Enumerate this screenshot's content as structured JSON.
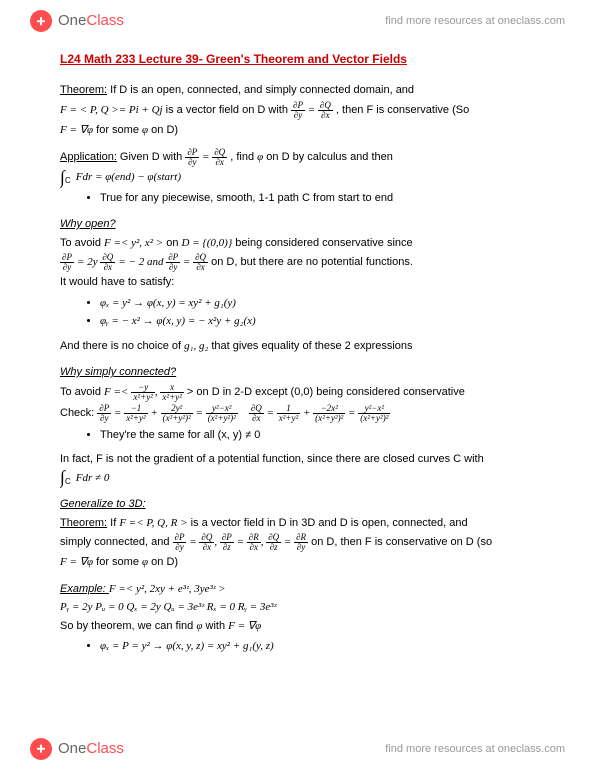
{
  "header": {
    "brand_one": "One",
    "brand_class": "Class",
    "link_text": "find more resources at oneclass.com",
    "link_url": "oneclass.com"
  },
  "footer": {
    "brand_one": "One",
    "brand_class": "Class",
    "link_text": "find more resources at oneclass.com"
  },
  "title": "L24 Math 233 Lecture 39- Green's Theorem and Vector Fields",
  "theorem_intro": {
    "label": "Theorem:",
    "text": " If D is an open, connected, and simply connected domain, and"
  },
  "theorem_line2a": "F =  < P, Q >= Pi + Qj",
  "theorem_line2b": " is a vector field on D with  ",
  "theorem_line2c": " , then F is conservative (So",
  "theorem_line3a": "F = ∇φ",
  "theorem_line3b": " for some ",
  "theorem_line3c": "φ",
  "theorem_line3d": " on D)",
  "application": {
    "label": "Application:",
    "text1": " Given D with  ",
    "text2": " , find  ",
    "phi": "φ",
    "text3": "  on D by calculus and then"
  },
  "integral_line": "Fdr = φ(end) − φ(start)",
  "bullet1": "True for any piecewise, smooth, 1-1 path C from start to end",
  "why_open": {
    "heading": "Why open?",
    "line1a": "To avoid ",
    "line1b": "F =< y², x² >",
    "line1c": "  on  ",
    "line1d": "D = {(0,0)}",
    "line1e": " being considered conservative since",
    "line2a": " = 2y  ",
    "line2b": " = − 2  and  ",
    "line2c": " on D, but there are no potential functions.",
    "line3": "It would have to satisfy:",
    "bullet_a": "φₓ = y² → φ(x, y) = xy² + g₁(y)",
    "bullet_b": "φᵧ = − x² → φ(x, y) = − x²y + g₂(x)",
    "line4a": "And there is no choice of ",
    "line4b": "g₁, g₂",
    "line4c": " that gives equality of these 2 expressions"
  },
  "why_simply": {
    "heading": "Why simply connected?",
    "line1a": "To avoid ",
    "line1b": "F =<",
    "line1c": " > on D in 2-D except (0,0) being considered conservative",
    "check_label": "Check:   ",
    "bullet": "They're the same for all (x, y) ≠ 0",
    "line2": "In fact, F is not the gradient of a potential function, since there are closed curves C with",
    "integral": "Fdr ≠ 0"
  },
  "generalize": {
    "heading": "Generalize to 3D:",
    "label": "Theorem:",
    "line1a": " If ",
    "line1b": "F =< P, Q, R >",
    "line1c": " is a vector field in D in 3D and D is open, connected, and",
    "line2a": "simply connected, and ",
    "line2b": " on D, then F is conservative on D (so",
    "line3a": "F = ∇φ",
    "line3b": " for some ",
    "line3c": "φ",
    "line3d": " on D)"
  },
  "example": {
    "label": "Example: ",
    "line1": "F =< y², 2xy + e³ᶻ, 3ye³ᶻ >",
    "line2": "Pᵧ = 2y   Pᵤ = 0   Qₓ = 2y   Qᵤ = 3e³ᶻ   Rₓ = 0   Rᵧ = 3e³ᶻ",
    "line3a": "So by theorem, we can find ",
    "line3b": "φ",
    "line3c": "  with  ",
    "line3d": "F = ∇φ",
    "bullet": "φₓ = P = y² → φ(x, y, z) = xy² + g₁(y, z)"
  },
  "colors": {
    "title_color": "#cc0000",
    "logo_color": "#ff4d4f",
    "link_color": "#999999",
    "text_color": "#000000",
    "background": "#ffffff"
  }
}
